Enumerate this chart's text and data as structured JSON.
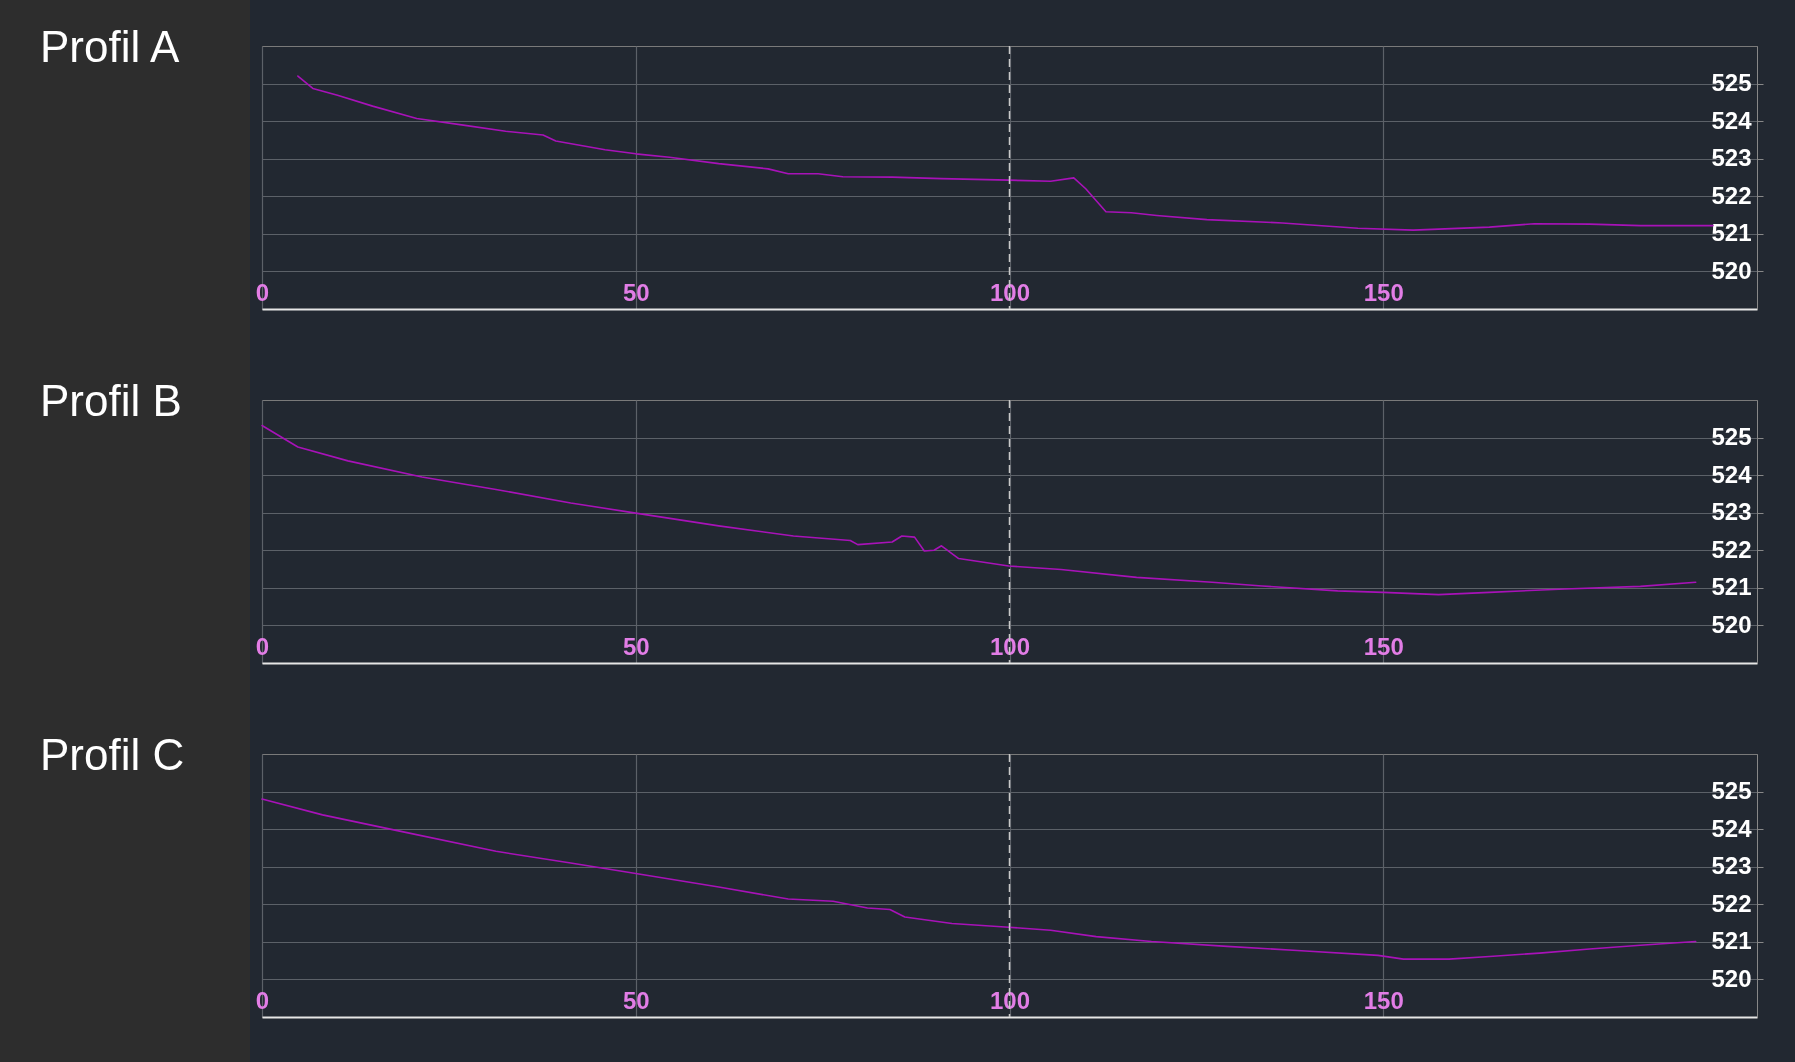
{
  "chart_data": [
    {
      "type": "line",
      "title": "Profil A",
      "x": [
        4.8,
        6.8,
        10.1,
        14.8,
        20.7,
        26.7,
        32.6,
        37.6,
        39.3,
        45.9,
        50,
        54.5,
        61.1,
        67.7,
        70.4,
        74.4,
        77.7,
        84.3,
        90.9,
        99.9,
        105.5,
        108.6,
        110.2,
        112.9,
        116.3,
        119.7,
        126.4,
        136.5,
        146.6,
        154,
        164.2,
        170.2,
        177.6,
        184.4,
        194.1
      ],
      "series": [
        {
          "color": "#a812b8",
          "values": [
            525.2,
            524.87,
            524.69,
            524.4,
            524.07,
            523.9,
            523.73,
            523.63,
            523.47,
            523.24,
            523.13,
            523.04,
            522.87,
            522.73,
            522.6,
            522.6,
            522.52,
            522.51,
            522.47,
            522.43,
            522.4,
            522.49,
            522.2,
            521.59,
            521.56,
            521.49,
            521.38,
            521.29,
            521.15,
            521.1,
            521.18,
            521.27,
            521.26,
            521.22,
            521.22
          ]
        }
      ],
      "xlim": [
        0,
        200
      ],
      "xticks": [
        0,
        50,
        100,
        150
      ],
      "ylim": [
        519,
        526
      ],
      "yticks": [
        520,
        521,
        522,
        523,
        524,
        525
      ],
      "grid": true,
      "ref_lines": [
        {
          "axis": "x",
          "value": 100,
          "line_style": "dashed",
          "color": "#c8c8c8"
        }
      ]
    },
    {
      "type": "line",
      "title": "Profil B",
      "x": [
        0,
        4.8,
        11.5,
        21.4,
        31.3,
        41.3,
        50,
        61.1,
        71.1,
        78.7,
        79.7,
        84.3,
        85.6,
        87.3,
        88.6,
        89.9,
        90.9,
        93.2,
        99.9,
        106.9,
        117,
        127.1,
        133.8,
        143.9,
        150,
        157.4,
        164.2,
        174.3,
        184.4,
        191.8
      ],
      "series": [
        {
          "color": "#a812b8",
          "values": [
            525.32,
            524.75,
            524.38,
            523.95,
            523.62,
            523.26,
            522.99,
            522.65,
            522.38,
            522.26,
            522.15,
            522.22,
            522.38,
            522.35,
            521.98,
            522.0,
            522.12,
            521.78,
            521.58,
            521.49,
            521.28,
            521.15,
            521.05,
            520.92,
            520.88,
            520.82,
            520.88,
            520.97,
            521.04,
            521.15
          ]
        }
      ],
      "xlim": [
        0,
        200
      ],
      "xticks": [
        0,
        50,
        100,
        150
      ],
      "ylim": [
        519,
        526
      ],
      "yticks": [
        520,
        521,
        522,
        523,
        524,
        525
      ],
      "grid": true,
      "ref_lines": [
        {
          "axis": "x",
          "value": 100,
          "line_style": "dashed",
          "color": "#c8c8c8"
        }
      ]
    },
    {
      "type": "line",
      "title": "Profil C",
      "x": [
        0,
        8.1,
        18.1,
        31.3,
        41.3,
        50,
        61.1,
        70.4,
        76.4,
        81,
        84,
        86,
        92.3,
        99.9,
        105.5,
        111.6,
        119,
        129.1,
        138.5,
        149.3,
        152.7,
        158.8,
        164.2,
        170.9,
        177.6,
        184.4,
        191.8
      ],
      "series": [
        {
          "color": "#a812b8",
          "values": [
            524.8,
            524.38,
            523.96,
            523.41,
            523.1,
            522.82,
            522.46,
            522.14,
            522.08,
            521.9,
            521.86,
            521.66,
            521.49,
            521.39,
            521.31,
            521.14,
            521.01,
            520.88,
            520.77,
            520.64,
            520.54,
            520.54,
            520.61,
            520.7,
            520.81,
            520.91,
            521.01
          ]
        }
      ],
      "xlim": [
        0,
        200
      ],
      "xticks": [
        0,
        50,
        100,
        150
      ],
      "ylim": [
        519,
        526
      ],
      "yticks": [
        520,
        521,
        522,
        523,
        524,
        525
      ],
      "grid": true,
      "ref_lines": [
        {
          "axis": "x",
          "value": 100,
          "line_style": "dashed",
          "color": "#c8c8c8"
        }
      ]
    }
  ]
}
